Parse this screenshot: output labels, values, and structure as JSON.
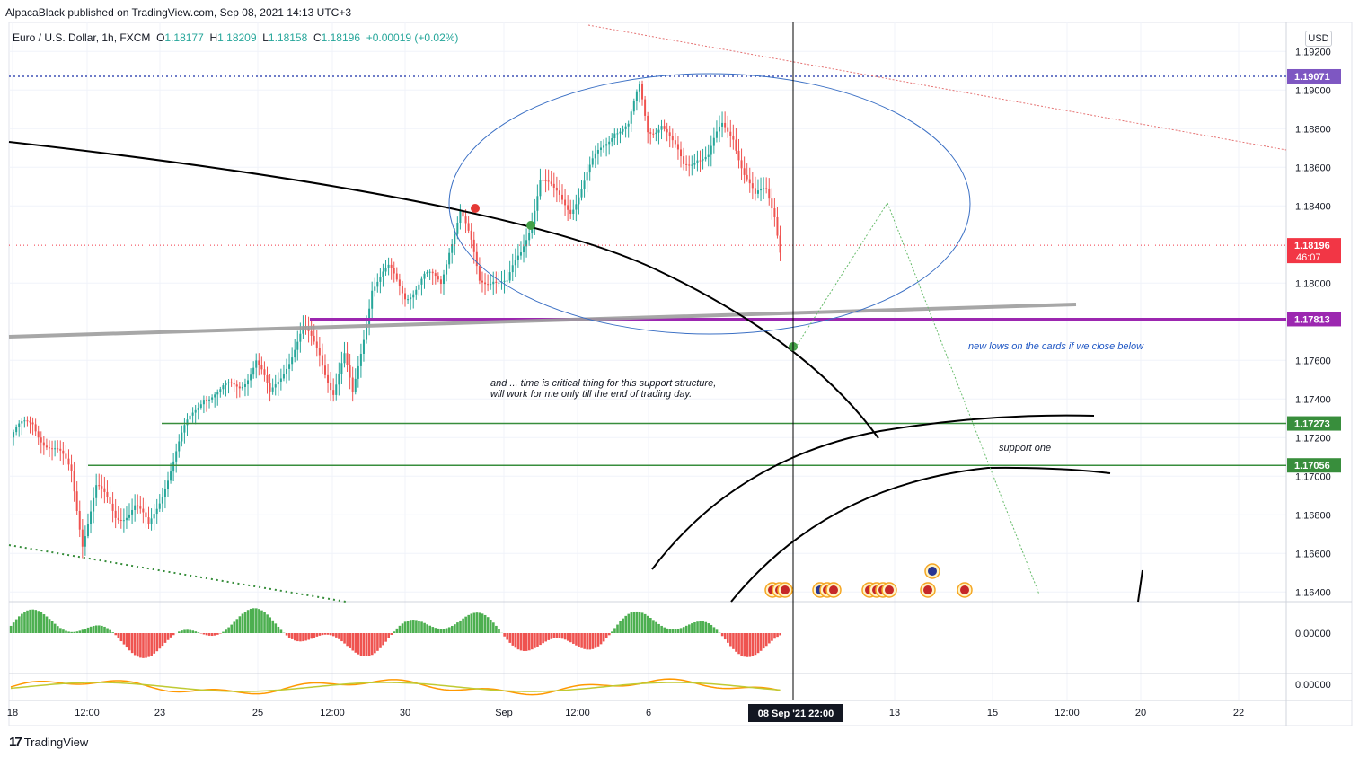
{
  "header": {
    "published": "AlpacaBlack published on TradingView.com, Sep 08, 2021 14:13 UTC+3"
  },
  "legend": {
    "symbol": "Euro / U.S. Dollar, 1h, FXCM",
    "o_label": "O",
    "o": "1.18177",
    "h_label": "H",
    "h": "1.18209",
    "l_label": "L",
    "l": "1.18158",
    "c_label": "C",
    "c": "1.18196",
    "change": "+0.00019 (+0.02%)"
  },
  "currency_button": "USD",
  "footer": {
    "logo": "17",
    "brand": "TradingView"
  },
  "colors": {
    "up": "#26a69a",
    "down": "#ef5350",
    "purple": "#9c27b0",
    "green_level": "#388e3c",
    "ellipse": "#3a6fc4"
  },
  "chart_data": {
    "type": "candlestick",
    "symbol": "EURUSD",
    "interval": "1h",
    "ylim": [
      1.1635,
      1.1935
    ],
    "y_ticks": [
      1.192,
      1.19,
      1.188,
      1.186,
      1.184,
      1.18,
      1.176,
      1.174,
      1.172,
      1.17,
      1.168,
      1.166,
      1.164
    ],
    "y_tick_labels": [
      "1.19200",
      "1.19000",
      "1.18800",
      "1.18600",
      "1.18400",
      "1.18000",
      "1.17600",
      "1.17400",
      "1.17200",
      "1.17000",
      "1.16800",
      "1.16600",
      "1.16400"
    ],
    "x_ticks": [
      "18",
      "12:00",
      "23",
      "25",
      "12:00",
      "30",
      "Sep",
      "12:00",
      "6",
      "13",
      "15",
      "12:00",
      "20",
      "22"
    ],
    "crosshair_label": "08 Sep '21   22:00",
    "price_labels": [
      {
        "value": "1.19071",
        "color": "#7e57c2"
      },
      {
        "value": "1.18196",
        "color": "#f23645",
        "countdown": "46:07"
      },
      {
        "value": "1.17813",
        "color": "#9c27b0"
      },
      {
        "value": "1.17273",
        "color": "#388e3c"
      },
      {
        "value": "1.17056",
        "color": "#388e3c"
      }
    ],
    "horizontal_levels": [
      1.19071,
      1.18196,
      1.17813,
      1.17273,
      1.17056
    ],
    "close_path": [
      [
        0,
        1.172
      ],
      [
        8,
        1.1728
      ],
      [
        15,
        1.1714
      ],
      [
        22,
        1.1702
      ],
      [
        26,
        1.1668
      ],
      [
        31,
        1.1693
      ],
      [
        38,
        1.168
      ],
      [
        45,
        1.1684
      ],
      [
        50,
        1.1672
      ],
      [
        56,
        1.1698
      ],
      [
        63,
        1.1722
      ],
      [
        70,
        1.1744
      ],
      [
        76,
        1.1742
      ],
      [
        83,
        1.1748
      ],
      [
        89,
        1.176
      ],
      [
        94,
        1.174
      ],
      [
        100,
        1.176
      ],
      [
        106,
        1.1774
      ],
      [
        112,
        1.1764
      ],
      [
        117,
        1.1745
      ],
      [
        121,
        1.176
      ],
      [
        124,
        1.174
      ],
      [
        127,
        1.1765
      ],
      [
        131,
        1.18
      ],
      [
        137,
        1.1805
      ],
      [
        143,
        1.1795
      ],
      [
        150,
        1.1802
      ],
      [
        156,
        1.18
      ],
      [
        159,
        1.182
      ],
      [
        163,
        1.1838
      ],
      [
        167,
        1.1818
      ],
      [
        170,
        1.18
      ],
      [
        175,
        1.1805
      ],
      [
        180,
        1.1798
      ],
      [
        185,
        1.1815
      ],
      [
        189,
        1.1835
      ],
      [
        192,
        1.1855
      ],
      [
        197,
        1.1845
      ],
      [
        203,
        1.184
      ],
      [
        209,
        1.1855
      ],
      [
        214,
        1.1868
      ],
      [
        219,
        1.1882
      ],
      [
        224,
        1.188
      ],
      [
        228,
        1.19
      ],
      [
        231,
        1.188
      ],
      [
        236,
        1.1884
      ],
      [
        240,
        1.187
      ],
      [
        244,
        1.186
      ],
      [
        249,
        1.1868
      ],
      [
        253,
        1.1865
      ],
      [
        258,
        1.188
      ],
      [
        262,
        1.1878
      ],
      [
        266,
        1.1858
      ],
      [
        270,
        1.1842
      ],
      [
        274,
        1.1848
      ],
      [
        277,
        1.1838
      ],
      [
        279,
        1.182
      ]
    ],
    "annotations": [
      "and ... time is critical thing for this support structure,",
      "will work for me only till the end of trading day.",
      "new lows on the cards if we close below",
      "support one"
    ],
    "oscillator_1": {
      "type": "histogram",
      "value_label": "0.00000"
    },
    "oscillator_2": {
      "type": "line",
      "value_label": "0.00000"
    }
  }
}
